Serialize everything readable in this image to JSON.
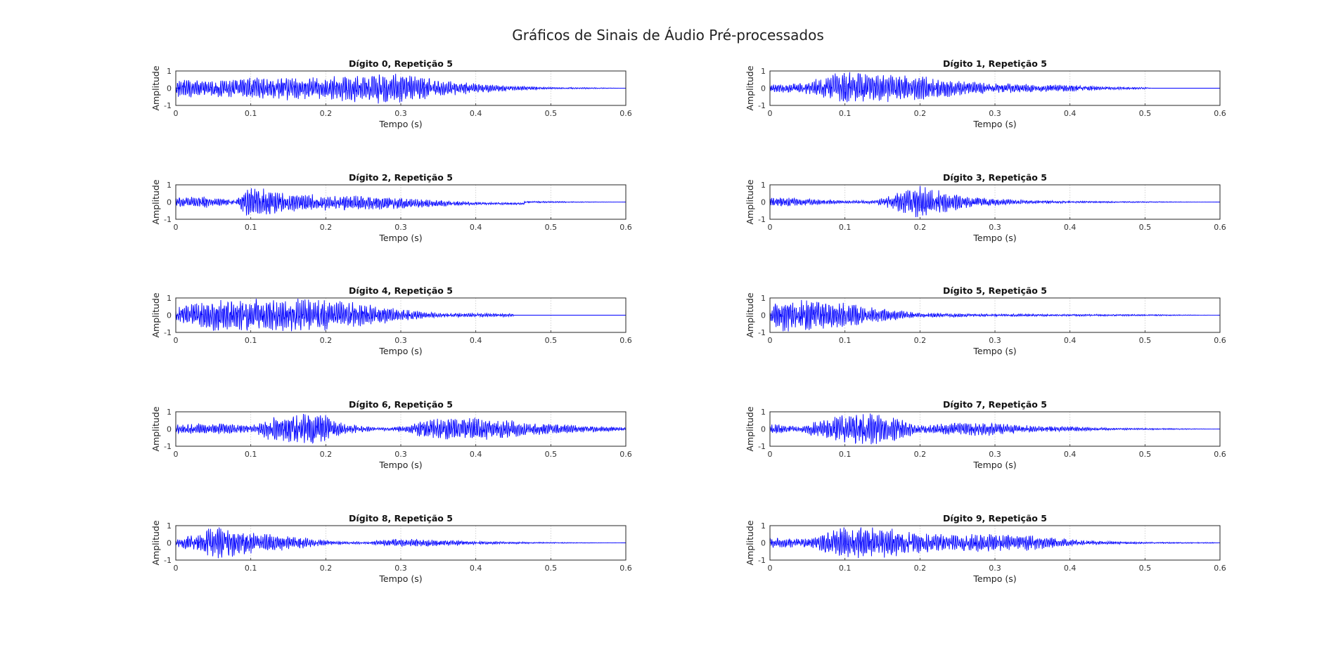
{
  "figure_title": "Gráficos de Sinais de Áudio Pré-processados",
  "colors": {
    "signal": "#0000ff",
    "axes": "#262626",
    "grid": "#c8c8c8",
    "background": "#ffffff"
  },
  "chart_data": [
    {
      "type": "line",
      "title": "Dígito 0, Repetição 5",
      "xlabel": "Tempo (s)",
      "ylabel": "Amplitude",
      "xlim": [
        0,
        0.6
      ],
      "ylim": [
        -1,
        1
      ],
      "xticks": [
        "0",
        "0.1",
        "0.2",
        "0.3",
        "0.4",
        "0.5",
        "0.6"
      ],
      "yticks": [
        "-1",
        "0",
        "1"
      ],
      "grid": "vertical dotted",
      "envelope": [
        [
          0,
          0.15
        ],
        [
          0.003,
          0.55
        ],
        [
          0.05,
          0.5
        ],
        [
          0.1,
          0.65
        ],
        [
          0.15,
          0.72
        ],
        [
          0.2,
          0.62
        ],
        [
          0.25,
          1.0
        ],
        [
          0.3,
          0.85
        ],
        [
          0.35,
          0.55
        ],
        [
          0.4,
          0.3
        ],
        [
          0.45,
          0.15
        ],
        [
          0.5,
          0.06
        ],
        [
          0.558,
          0.04
        ],
        [
          0.6,
          0.0
        ]
      ]
    },
    {
      "type": "line",
      "title": "Dígito 1, Repetição 5",
      "xlabel": "Tempo (s)",
      "ylabel": "Amplitude",
      "xlim": [
        0,
        0.6
      ],
      "ylim": [
        -1,
        1
      ],
      "xticks": [
        "0",
        "0.1",
        "0.2",
        "0.3",
        "0.4",
        "0.5",
        "0.6"
      ],
      "yticks": [
        "-1",
        "0",
        "1"
      ],
      "grid": "vertical dotted",
      "envelope": [
        [
          0,
          0.2
        ],
        [
          0.05,
          0.4
        ],
        [
          0.08,
          0.8
        ],
        [
          0.1,
          1.0
        ],
        [
          0.15,
          0.9
        ],
        [
          0.2,
          0.75
        ],
        [
          0.25,
          0.45
        ],
        [
          0.3,
          0.3
        ],
        [
          0.35,
          0.25
        ],
        [
          0.4,
          0.2
        ],
        [
          0.45,
          0.1
        ],
        [
          0.5,
          0.06
        ],
        [
          0.51,
          0.0
        ],
        [
          0.6,
          0.0
        ]
      ]
    },
    {
      "type": "line",
      "title": "Dígito 2, Repetição 5",
      "xlabel": "Tempo (s)",
      "ylabel": "Amplitude",
      "xlim": [
        0,
        0.6
      ],
      "ylim": [
        -1,
        1
      ],
      "xticks": [
        "0",
        "0.1",
        "0.2",
        "0.3",
        "0.4",
        "0.5",
        "0.6"
      ],
      "yticks": [
        "-1",
        "0",
        "1"
      ],
      "grid": "vertical dotted",
      "envelope": [
        [
          0,
          0.3
        ],
        [
          0.04,
          0.35
        ],
        [
          0.08,
          0.1
        ],
        [
          0.09,
          0.8
        ],
        [
          0.1,
          1.0
        ],
        [
          0.15,
          0.6
        ],
        [
          0.2,
          0.45
        ],
        [
          0.25,
          0.45
        ],
        [
          0.3,
          0.35
        ],
        [
          0.35,
          0.2
        ],
        [
          0.4,
          0.08
        ],
        [
          0.465,
          0.06
        ],
        [
          0.6,
          0.0
        ]
      ],
      "offset_after": [
        0.465,
        0.0
      ]
    },
    {
      "type": "line",
      "title": "Dígito 3, Repetição 5",
      "xlabel": "Tempo (s)",
      "ylabel": "Amplitude",
      "xlim": [
        0,
        0.6
      ],
      "ylim": [
        -1,
        1
      ],
      "xticks": [
        "0",
        "0.1",
        "0.2",
        "0.3",
        "0.4",
        "0.5",
        "0.6"
      ],
      "yticks": [
        "-1",
        "0",
        "1"
      ],
      "grid": "vertical dotted",
      "envelope": [
        [
          0,
          0.3
        ],
        [
          0.05,
          0.2
        ],
        [
          0.1,
          0.08
        ],
        [
          0.14,
          0.1
        ],
        [
          0.17,
          0.55
        ],
        [
          0.2,
          1.0
        ],
        [
          0.23,
          0.7
        ],
        [
          0.27,
          0.3
        ],
        [
          0.3,
          0.2
        ],
        [
          0.35,
          0.1
        ],
        [
          0.4,
          0.06
        ],
        [
          0.448,
          0.05
        ],
        [
          0.6,
          0.0
        ]
      ]
    },
    {
      "type": "line",
      "title": "Dígito 4, Repetição 5",
      "xlabel": "Tempo (s)",
      "ylabel": "Amplitude",
      "xlim": [
        0,
        0.6
      ],
      "ylim": [
        -1,
        1
      ],
      "xticks": [
        "0",
        "0.1",
        "0.2",
        "0.3",
        "0.4",
        "0.5",
        "0.6"
      ],
      "yticks": [
        "-1",
        "0",
        "1"
      ],
      "grid": "vertical dotted",
      "envelope": [
        [
          0,
          0.5
        ],
        [
          0.05,
          0.95
        ],
        [
          0.1,
          1.0
        ],
        [
          0.15,
          1.0
        ],
        [
          0.2,
          0.9
        ],
        [
          0.25,
          0.7
        ],
        [
          0.3,
          0.35
        ],
        [
          0.35,
          0.15
        ],
        [
          0.4,
          0.12
        ],
        [
          0.45,
          0.1
        ],
        [
          0.451,
          0.0
        ],
        [
          0.6,
          0.0
        ]
      ]
    },
    {
      "type": "line",
      "title": "Dígito 5, Repetição 5",
      "xlabel": "Tempo (s)",
      "ylabel": "Amplitude",
      "xlim": [
        0,
        0.6
      ],
      "ylim": [
        -1,
        1
      ],
      "xticks": [
        "0",
        "0.1",
        "0.2",
        "0.3",
        "0.4",
        "0.5",
        "0.6"
      ],
      "yticks": [
        "-1",
        "0",
        "1"
      ],
      "grid": "vertical dotted",
      "envelope": [
        [
          0,
          0.6
        ],
        [
          0.02,
          1.0
        ],
        [
          0.06,
          0.9
        ],
        [
          0.1,
          0.75
        ],
        [
          0.15,
          0.4
        ],
        [
          0.2,
          0.15
        ],
        [
          0.3,
          0.08
        ],
        [
          0.4,
          0.06
        ],
        [
          0.5,
          0.05
        ],
        [
          0.527,
          0.04
        ],
        [
          0.6,
          0.0
        ]
      ]
    },
    {
      "type": "line",
      "title": "Dígito 6, Repetição 5",
      "xlabel": "Tempo (s)",
      "ylabel": "Amplitude",
      "xlim": [
        0,
        0.6
      ],
      "ylim": [
        -1,
        1
      ],
      "xticks": [
        "0",
        "0.1",
        "0.2",
        "0.3",
        "0.4",
        "0.5",
        "0.6"
      ],
      "yticks": [
        "-1",
        "0",
        "1"
      ],
      "grid": "vertical dotted",
      "envelope": [
        [
          0,
          0.3
        ],
        [
          0.05,
          0.35
        ],
        [
          0.1,
          0.2
        ],
        [
          0.12,
          0.6
        ],
        [
          0.16,
          1.0
        ],
        [
          0.2,
          0.8
        ],
        [
          0.23,
          0.3
        ],
        [
          0.27,
          0.08
        ],
        [
          0.31,
          0.2
        ],
        [
          0.33,
          0.6
        ],
        [
          0.4,
          0.7
        ],
        [
          0.45,
          0.5
        ],
        [
          0.5,
          0.3
        ],
        [
          0.55,
          0.2
        ],
        [
          0.6,
          0.1
        ]
      ]
    },
    {
      "type": "line",
      "title": "Dígito 7, Repetição 5",
      "xlabel": "Tempo (s)",
      "ylabel": "Amplitude",
      "xlim": [
        0,
        0.6
      ],
      "ylim": [
        -1,
        1
      ],
      "xticks": [
        "0",
        "0.1",
        "0.2",
        "0.3",
        "0.4",
        "0.5",
        "0.6"
      ],
      "yticks": [
        "-1",
        "0",
        "1"
      ],
      "grid": "vertical dotted",
      "envelope": [
        [
          0,
          0.3
        ],
        [
          0.04,
          0.15
        ],
        [
          0.06,
          0.5
        ],
        [
          0.1,
          0.9
        ],
        [
          0.13,
          1.0
        ],
        [
          0.17,
          0.7
        ],
        [
          0.2,
          0.25
        ],
        [
          0.25,
          0.4
        ],
        [
          0.29,
          0.4
        ],
        [
          0.35,
          0.2
        ],
        [
          0.4,
          0.15
        ],
        [
          0.45,
          0.07
        ],
        [
          0.537,
          0.04
        ],
        [
          0.6,
          0.0
        ]
      ]
    },
    {
      "type": "line",
      "title": "Dígito 8, Repetição 5",
      "xlabel": "Tempo (s)",
      "ylabel": "Amplitude",
      "xlim": [
        0,
        0.6
      ],
      "ylim": [
        -1,
        1
      ],
      "xticks": [
        "0",
        "0.1",
        "0.2",
        "0.3",
        "0.4",
        "0.5",
        "0.6"
      ],
      "yticks": [
        "-1",
        "0",
        "1"
      ],
      "grid": "vertical dotted",
      "envelope": [
        [
          0,
          0.2
        ],
        [
          0.03,
          0.6
        ],
        [
          0.05,
          1.0
        ],
        [
          0.1,
          0.65
        ],
        [
          0.15,
          0.45
        ],
        [
          0.2,
          0.15
        ],
        [
          0.25,
          0.07
        ],
        [
          0.3,
          0.25
        ],
        [
          0.35,
          0.2
        ],
        [
          0.4,
          0.1
        ],
        [
          0.45,
          0.06
        ],
        [
          0.49,
          0.04
        ],
        [
          0.6,
          0.0
        ]
      ]
    },
    {
      "type": "line",
      "title": "Dígito 9, Repetição 5",
      "xlabel": "Tempo (s)",
      "ylabel": "Amplitude",
      "xlim": [
        0,
        0.6
      ],
      "ylim": [
        -1,
        1
      ],
      "xticks": [
        "0",
        "0.1",
        "0.2",
        "0.3",
        "0.4",
        "0.5",
        "0.6"
      ],
      "yticks": [
        "-1",
        "0",
        "1"
      ],
      "grid": "vertical dotted",
      "envelope": [
        [
          0,
          0.3
        ],
        [
          0.05,
          0.25
        ],
        [
          0.08,
          0.7
        ],
        [
          0.1,
          1.0
        ],
        [
          0.15,
          0.9
        ],
        [
          0.2,
          0.6
        ],
        [
          0.25,
          0.5
        ],
        [
          0.3,
          0.55
        ],
        [
          0.35,
          0.45
        ],
        [
          0.4,
          0.2
        ],
        [
          0.45,
          0.1
        ],
        [
          0.5,
          0.05
        ],
        [
          0.59,
          0.03
        ],
        [
          0.6,
          0.0
        ]
      ]
    }
  ]
}
